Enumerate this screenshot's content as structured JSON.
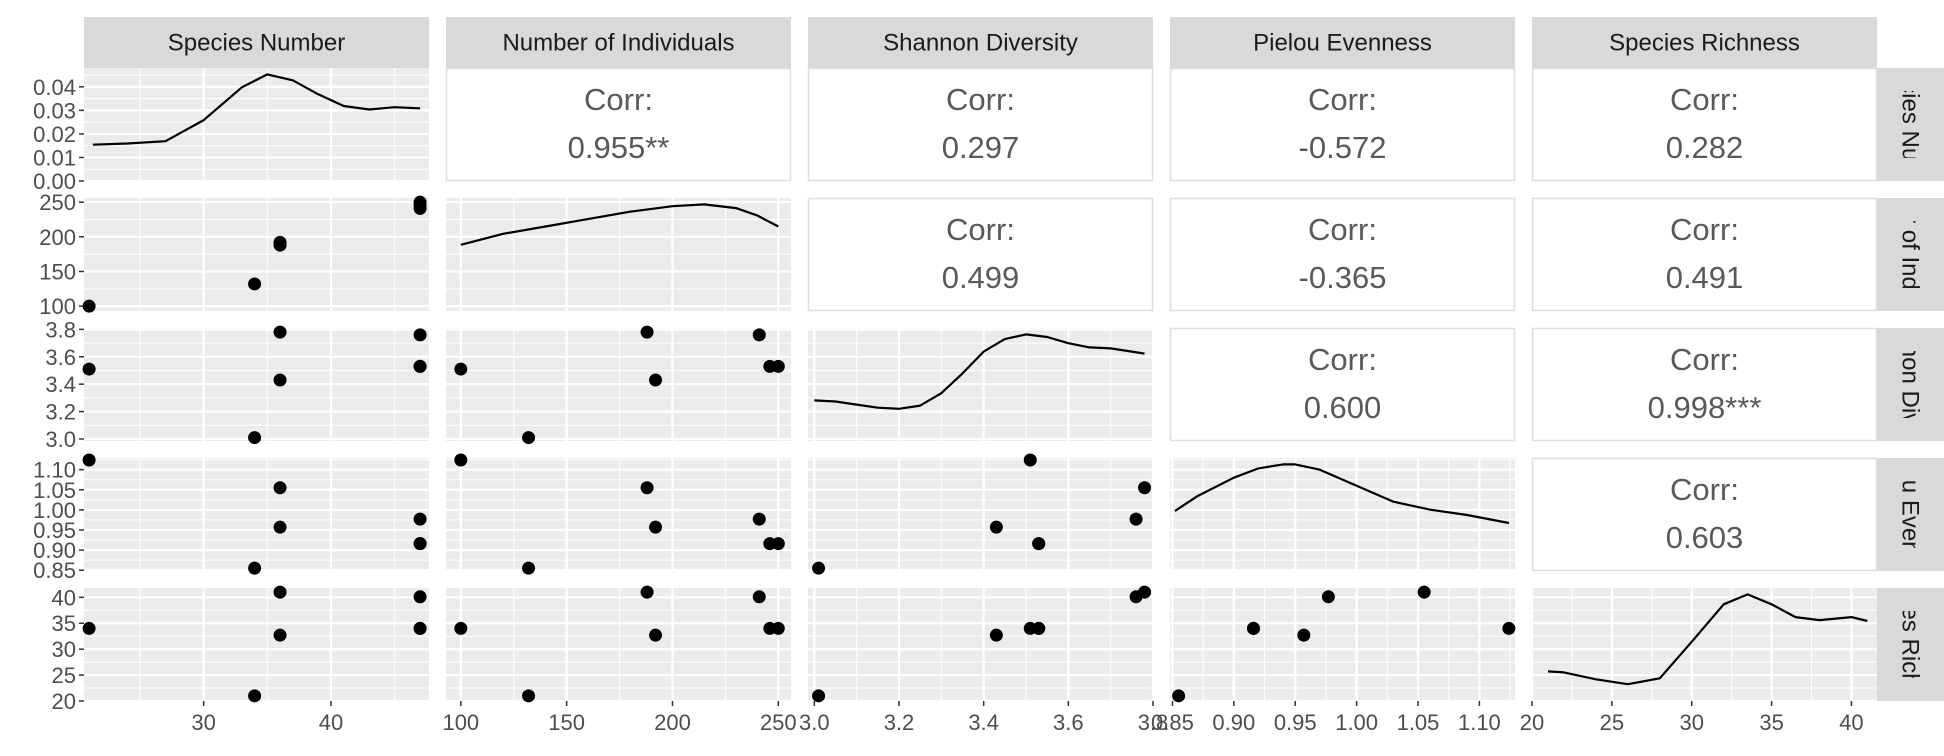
{
  "chart_data": {
    "type": "scatter",
    "kind": "pairs-plot",
    "variables": [
      "Species Number",
      "Number of Individuals",
      "Shannon Diversity",
      "Pielou Evenness",
      "Species Richness"
    ],
    "row_strip_labels": [
      "ecies Num",
      "er of Indiv",
      "nnon Dive",
      "lou Evenn",
      "cies Richn"
    ],
    "corr_prefix": "Corr:",
    "correlations": [
      {
        "row": 0,
        "col": 1,
        "value": "0.955**"
      },
      {
        "row": 0,
        "col": 2,
        "value": "0.297"
      },
      {
        "row": 0,
        "col": 3,
        "value": "-0.572"
      },
      {
        "row": 0,
        "col": 4,
        "value": "0.282"
      },
      {
        "row": 1,
        "col": 2,
        "value": "0.499"
      },
      {
        "row": 1,
        "col": 3,
        "value": "-0.365"
      },
      {
        "row": 1,
        "col": 4,
        "value": "0.491"
      },
      {
        "row": 2,
        "col": 3,
        "value": "0.600"
      },
      {
        "row": 2,
        "col": 4,
        "value": "0.998***"
      },
      {
        "row": 3,
        "col": 4,
        "value": "0.603"
      }
    ],
    "x_axes": [
      {
        "range": [
          20.6,
          47.7
        ],
        "ticks": [
          30,
          40
        ],
        "labels": [
          "30",
          "40"
        ]
      },
      {
        "range": [
          93,
          256
        ],
        "ticks": [
          100,
          150,
          200,
          250
        ],
        "labels": [
          "100",
          "150",
          "200",
          "250"
        ]
      },
      {
        "range": [
          2.985,
          3.8
        ],
        "ticks": [
          3.0,
          3.2,
          3.4,
          3.6,
          3.8
        ],
        "labels": [
          "3.0",
          "3.2",
          "3.4",
          "3.6",
          "3.8"
        ]
      },
      {
        "range": [
          0.848,
          1.129
        ],
        "ticks": [
          0.85,
          0.9,
          0.95,
          1.0,
          1.05,
          1.1
        ],
        "labels": [
          "0.85",
          "0.90",
          "0.95",
          "1.00",
          "1.05",
          "1.10"
        ]
      },
      {
        "range": [
          20.0,
          41.6
        ],
        "ticks": [
          20,
          25,
          30,
          35,
          40
        ],
        "labels": [
          "20",
          "25",
          "30",
          "35",
          "40"
        ]
      }
    ],
    "y_axes": [
      {
        "range": [
          0,
          0.048
        ],
        "ticks": [
          0,
          0.01,
          0.02,
          0.03,
          0.04
        ],
        "labels": [
          "0.00",
          "0.01",
          "0.02",
          "0.03",
          "0.04"
        ]
      },
      {
        "range": [
          93,
          256
        ],
        "ticks": [
          100,
          150,
          200,
          250
        ],
        "labels": [
          "100",
          "150",
          "200",
          "250"
        ]
      },
      {
        "range": [
          2.985,
          3.81
        ],
        "ticks": [
          3.0,
          3.2,
          3.4,
          3.6,
          3.8
        ],
        "labels": [
          "3.0",
          "3.2",
          "3.4",
          "3.6",
          "3.8"
        ]
      },
      {
        "range": [
          0.848,
          1.129
        ],
        "ticks": [
          0.85,
          0.9,
          0.95,
          1.0,
          1.05,
          1.1
        ],
        "labels": [
          "0.85",
          "0.90",
          "0.95",
          "1.00",
          "1.05",
          "1.10"
        ]
      },
      {
        "range": [
          20.0,
          41.8
        ],
        "ticks": [
          20,
          25,
          30,
          35,
          40
        ],
        "labels": [
          "20",
          "25",
          "30",
          "35",
          "40"
        ]
      }
    ],
    "density_curves": [
      {
        "var": 0,
        "x": [
          21.3,
          24,
          27,
          30,
          33,
          35,
          37,
          39,
          41,
          43,
          45,
          47
        ],
        "y": [
          0.0155,
          0.016,
          0.017,
          0.026,
          0.04,
          0.0455,
          0.043,
          0.037,
          0.032,
          0.0305,
          0.0315,
          0.031
        ]
      },
      {
        "var": 1,
        "x": [
          100,
          120,
          140,
          160,
          180,
          200,
          215,
          230,
          240,
          250
        ],
        "y": [
          0.0036,
          0.0042,
          0.0046,
          0.005,
          0.0054,
          0.0057,
          0.0058,
          0.0056,
          0.0052,
          0.0046
        ]
      },
      {
        "var": 2,
        "x": [
          3.0,
          3.05,
          3.1,
          3.15,
          3.2,
          3.25,
          3.3,
          3.35,
          3.4,
          3.45,
          3.5,
          3.55,
          3.6,
          3.65,
          3.7,
          3.75,
          3.78
        ],
        "y": [
          0.78,
          0.76,
          0.7,
          0.64,
          0.62,
          0.68,
          0.92,
          1.3,
          1.72,
          1.96,
          2.05,
          2.0,
          1.88,
          1.8,
          1.78,
          1.72,
          1.68
        ]
      },
      {
        "var": 3,
        "x": [
          0.852,
          0.87,
          0.9,
          0.92,
          0.94,
          0.95,
          0.97,
          1.0,
          1.03,
          1.06,
          1.09,
          1.124
        ],
        "y": [
          4.5,
          5.6,
          7.0,
          7.7,
          8.0,
          8.0,
          7.6,
          6.4,
          5.2,
          4.6,
          4.2,
          3.6
        ]
      },
      {
        "var": 4,
        "x": [
          21,
          22,
          24,
          26,
          28,
          30,
          32,
          33.5,
          35,
          36.5,
          38,
          40,
          41
        ],
        "y": [
          0.03,
          0.029,
          0.022,
          0.017,
          0.023,
          0.06,
          0.098,
          0.108,
          0.098,
          0.085,
          0.082,
          0.085,
          0.081
        ]
      }
    ],
    "observations": [
      {
        "species": 47,
        "individuals": 250,
        "shannon": 3.53,
        "pielou": 0.916,
        "richness": 34.0
      },
      {
        "species": 47,
        "individuals": 241,
        "shannon": 3.76,
        "pielou": 0.977,
        "richness": 40.1
      },
      {
        "species": 47,
        "individuals": 246,
        "shannon": 3.53,
        "pielou": 0.916,
        "richness": 34.0
      },
      {
        "species": 36,
        "individuals": 188,
        "shannon": 3.78,
        "pielou": 1.055,
        "richness": 41.0
      },
      {
        "species": 36,
        "individuals": 192,
        "shannon": 3.43,
        "pielou": 0.957,
        "richness": 32.7
      },
      {
        "species": 34,
        "individuals": 132,
        "shannon": 3.01,
        "pielou": 0.855,
        "richness": 21.0
      },
      {
        "species": 21,
        "individuals": 100,
        "shannon": 3.51,
        "pielou": 1.124,
        "richness": 34.0
      }
    ],
    "grid": true,
    "legend": "none"
  }
}
